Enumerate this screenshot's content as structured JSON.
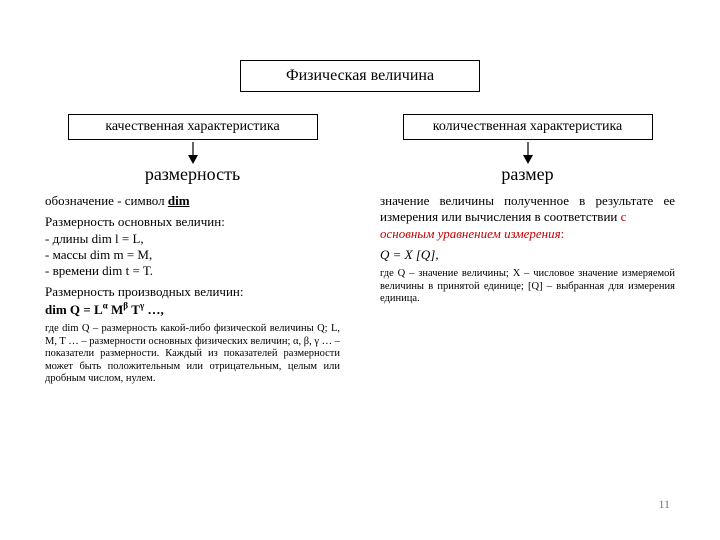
{
  "top": "Физическая величина",
  "left": {
    "box": "качественная характеристика",
    "heading": "размерность",
    "p1_pre": "обозначение - символ ",
    "p1_dim": "dim",
    "p2": "Размерность основных величин:",
    "p2a": "- длины dim l = L,",
    "p2b": "- массы dim m = M,",
    "p2c": "- времени dim t = T.",
    "p3": "Размерность производных величин:",
    "p3a_html": "dim Q = L<sup>α</sup> M<sup>β</sup> T<sup>γ</sup> …,",
    "small": "где dim Q – размерность какой-либо физической величины Q; L, M, T … – размерности основных физических величин; α, β, γ … – показатели размерности. Каждый из показателей размерности может быть положительным или отрицательным, целым или дробным числом, нулем."
  },
  "right": {
    "box": "количественная характеристика",
    "heading": "размер",
    "p1a": "значение величины полученное в результате ее измерения или вычисления в соответствии ",
    "p1b": "с",
    "p1c": "основным уравнением измерения",
    "p1d": ":",
    "p2": "Q = X [Q],",
    "small": "где Q – значение величины; X – числовое значение измеряемой величины в принятой единице; [Q] – выбранная для измерения единица."
  },
  "page": "11",
  "colors": {
    "border": "#000000",
    "red": "#c00000",
    "pagenum": "#7a7a7a",
    "bg": "#ffffff"
  }
}
